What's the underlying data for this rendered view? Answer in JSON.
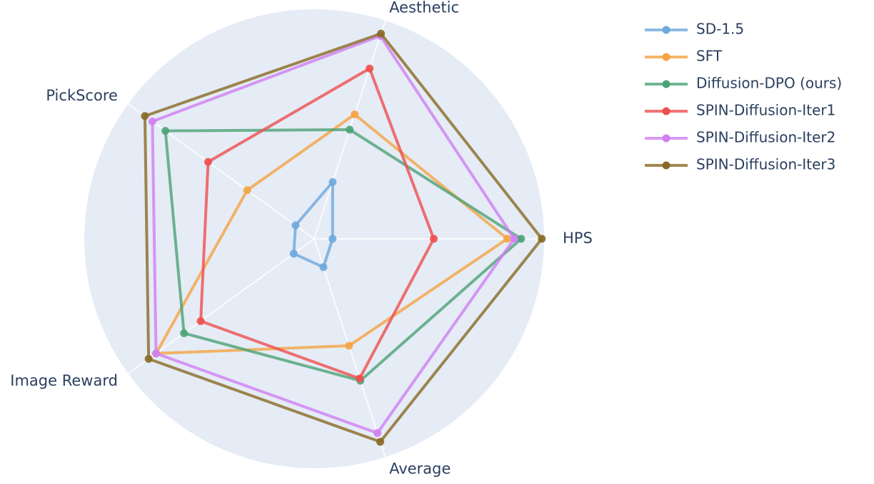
{
  "chart_data": {
    "type": "radar",
    "categories": [
      "HPS",
      "Aesthetic",
      "PickScore",
      "Image Reward",
      "Average"
    ],
    "rlim": [
      0,
      1
    ],
    "series": [
      {
        "name": "SD-1.5",
        "color": "#6fa8dc",
        "values": [
          0.08,
          0.26,
          0.1,
          0.11,
          0.13
        ]
      },
      {
        "name": "SFT",
        "color": "#f5a443",
        "values": [
          0.84,
          0.57,
          0.36,
          0.85,
          0.49
        ]
      },
      {
        "name": "Diffusion-DPO (ours)",
        "color": "#4ca377",
        "values": [
          0.9,
          0.5,
          0.8,
          0.7,
          0.65
        ]
      },
      {
        "name": "SPIN-Diffusion-Iter1",
        "color": "#ef4f4f",
        "values": [
          0.52,
          0.78,
          0.57,
          0.61,
          0.64
        ]
      },
      {
        "name": "SPIN-Diffusion-Iter2",
        "color": "#d07ff2",
        "values": [
          0.87,
          0.93,
          0.87,
          0.85,
          0.89
        ]
      },
      {
        "name": "SPIN-Diffusion-Iter3",
        "color": "#8a6a24",
        "values": [
          0.99,
          0.94,
          0.91,
          0.89,
          0.93
        ]
      }
    ],
    "legend": "top-right"
  }
}
